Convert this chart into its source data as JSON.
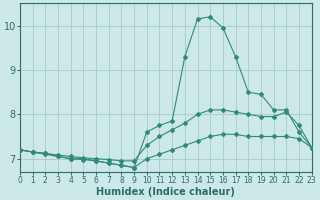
{
  "xlabel": "Humidex (Indice chaleur)",
  "x": [
    0,
    1,
    2,
    3,
    4,
    5,
    6,
    7,
    8,
    9,
    10,
    11,
    12,
    13,
    14,
    15,
    16,
    17,
    18,
    19,
    20,
    21,
    22,
    23
  ],
  "line_min": [
    7.2,
    7.15,
    7.1,
    7.05,
    7.0,
    7.0,
    6.95,
    6.9,
    6.85,
    6.8,
    7.0,
    7.1,
    7.2,
    7.3,
    7.4,
    7.5,
    7.55,
    7.55,
    7.5,
    7.5,
    7.5,
    7.5,
    7.45,
    7.25
  ],
  "line_mean": [
    7.2,
    7.15,
    7.12,
    7.08,
    7.05,
    7.02,
    7.0,
    6.98,
    6.95,
    6.95,
    7.3,
    7.5,
    7.65,
    7.8,
    8.0,
    8.1,
    8.1,
    8.05,
    8.0,
    7.95,
    7.95,
    8.05,
    7.75,
    7.25
  ],
  "line_max": [
    7.2,
    7.15,
    7.12,
    7.05,
    7.0,
    6.98,
    6.95,
    6.9,
    6.85,
    6.8,
    7.6,
    7.75,
    7.85,
    9.3,
    10.15,
    10.2,
    9.95,
    9.3,
    8.5,
    8.45,
    8.1,
    8.1,
    7.6,
    7.25
  ],
  "line_color": "#2e8b7a",
  "bg_color": "#cce8e8",
  "grid_color": "#aacece",
  "axis_color": "#2e6b6b",
  "ylim": [
    6.7,
    10.5
  ],
  "xlim": [
    0,
    23
  ],
  "yticks": [
    7,
    8,
    9,
    10
  ],
  "xticks": [
    0,
    1,
    2,
    3,
    4,
    5,
    6,
    7,
    8,
    9,
    10,
    11,
    12,
    13,
    14,
    15,
    16,
    17,
    18,
    19,
    20,
    21,
    22,
    23
  ]
}
